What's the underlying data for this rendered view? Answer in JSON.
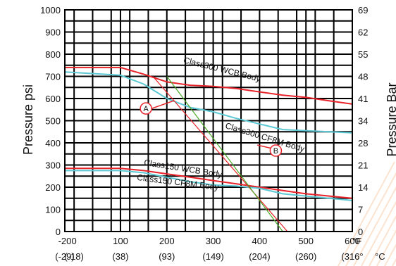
{
  "chart_data": {
    "type": "line",
    "ylabel_left": "Pressure psi",
    "ylabel_right": "Pressure Bar",
    "x_unit_label": "°F",
    "x_unit_label_secondary": "°C",
    "xlim": [
      -20,
      600
    ],
    "ylim": [
      0,
      1000
    ],
    "grid": true,
    "x_ticks_f": [
      "-20",
      "0",
      "100",
      "200",
      "300",
      "400",
      "500",
      "600"
    ],
    "x_ticks_c": [
      "(-29)",
      "(-18)",
      "(38)",
      "(93)",
      "(149)",
      "(204)",
      "(260)",
      "(316°"
    ],
    "y_ticks_psi": [
      "0",
      "100",
      "200",
      "300",
      "400",
      "500",
      "600",
      "700",
      "800",
      "900",
      "1000"
    ],
    "y_ticks_bar": [
      "0",
      "7",
      "14",
      "21",
      "28",
      "34",
      "41",
      "48",
      "55",
      "62",
      "69"
    ],
    "y_ticks_bar_values": [
      0,
      100,
      200,
      300,
      400,
      500,
      600,
      700,
      800,
      900,
      1000
    ],
    "series": [
      {
        "name": "Class300 WCB Body",
        "color": "#e8232a",
        "x": [
          -20,
          100,
          150,
          200,
          250,
          300,
          350,
          400,
          450,
          500,
          550,
          600
        ],
        "values": [
          740,
          740,
          710,
          675,
          660,
          655,
          645,
          630,
          615,
          605,
          590,
          575
        ]
      },
      {
        "name": "Class300 CF8M Body",
        "color": "#5bc8d4",
        "x": [
          -20,
          100,
          150,
          200,
          250,
          300,
          350,
          400,
          450,
          500,
          550,
          600
        ],
        "values": [
          720,
          705,
          665,
          600,
          560,
          540,
          510,
          485,
          460,
          455,
          450,
          445
        ]
      },
      {
        "name": "Class150 WCB Body",
        "color": "#e8232a",
        "x": [
          -20,
          100,
          150,
          200,
          250,
          300,
          350,
          400,
          450,
          500,
          550,
          600
        ],
        "values": [
          285,
          285,
          275,
          260,
          245,
          230,
          215,
          200,
          185,
          170,
          160,
          150
        ]
      },
      {
        "name": "Class150 CF8M Body",
        "color": "#5bc8d4",
        "x": [
          -20,
          100,
          150,
          200,
          250,
          300,
          350,
          400,
          450,
          500,
          550,
          600
        ],
        "values": [
          275,
          275,
          265,
          245,
          225,
          210,
          205,
          195,
          170,
          160,
          150,
          140
        ]
      },
      {
        "name": "",
        "color": "#e8232a",
        "x": [
          170,
          460
        ],
        "values": [
          700,
          0
        ]
      },
      {
        "name": "",
        "color": "#4aaa28",
        "x": [
          200,
          450
        ],
        "values": [
          700,
          0
        ]
      }
    ],
    "annotations": [
      {
        "text": "A",
        "x": 155,
        "y": 555,
        "target": "Class300 WCB Body"
      },
      {
        "text": "B",
        "x": 435,
        "y": 365,
        "target": ""
      }
    ]
  }
}
